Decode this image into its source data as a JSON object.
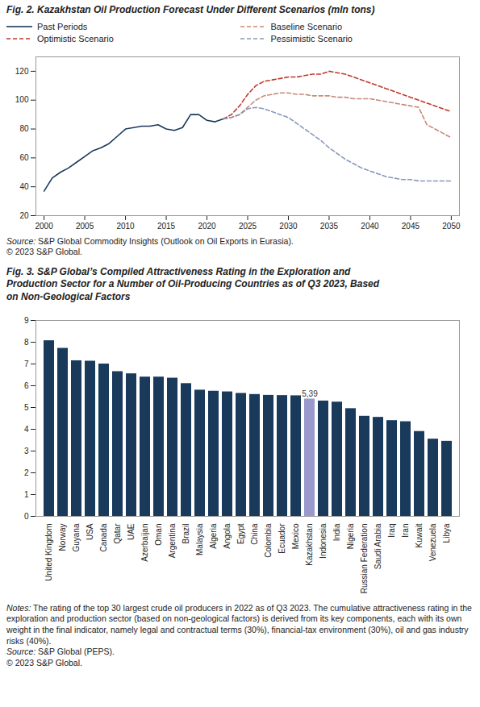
{
  "chart_data": [
    {
      "type": "line",
      "title": "Fig. 2. Kazakhstan Oil Production Forecast Under Different Scenarios (mln tons)",
      "x": [
        2000,
        2001,
        2002,
        2003,
        2004,
        2005,
        2006,
        2007,
        2008,
        2009,
        2010,
        2011,
        2012,
        2013,
        2014,
        2015,
        2016,
        2017,
        2018,
        2019,
        2020,
        2021,
        2022,
        2023,
        2024,
        2025,
        2026,
        2027,
        2028,
        2029,
        2030,
        2031,
        2032,
        2033,
        2034,
        2035,
        2036,
        2037,
        2038,
        2039,
        2040,
        2041,
        2042,
        2043,
        2044,
        2045,
        2046,
        2047,
        2048,
        2049,
        2050
      ],
      "series": [
        {
          "name": "Past Periods",
          "color": "#1a3a5c",
          "line_style": "solid",
          "values": [
            37,
            46,
            50,
            53,
            57,
            61,
            65,
            67,
            70,
            75,
            80,
            81,
            82,
            82,
            83,
            80,
            79,
            81,
            90,
            90,
            86,
            85,
            87,
            null,
            null,
            null,
            null,
            null,
            null,
            null,
            null,
            null,
            null,
            null,
            null,
            null,
            null,
            null,
            null,
            null,
            null,
            null,
            null,
            null,
            null,
            null,
            null,
            null,
            null,
            null,
            null
          ]
        },
        {
          "name": "Baseline Scenario",
          "color": "#c9897a",
          "line_style": "dashed",
          "values": [
            null,
            null,
            null,
            null,
            null,
            null,
            null,
            null,
            null,
            null,
            null,
            null,
            null,
            null,
            null,
            null,
            null,
            null,
            null,
            null,
            null,
            null,
            87,
            88,
            90,
            95,
            100,
            103,
            104,
            105,
            105,
            104,
            104,
            103,
            103,
            103,
            102,
            102,
            101,
            101,
            101,
            100,
            99,
            98,
            97,
            96,
            95,
            83,
            80,
            77,
            74
          ]
        },
        {
          "name": "Optimistic Scenario",
          "color": "#c0392b",
          "line_style": "dashed",
          "values": [
            null,
            null,
            null,
            null,
            null,
            null,
            null,
            null,
            null,
            null,
            null,
            null,
            null,
            null,
            null,
            null,
            null,
            null,
            null,
            null,
            null,
            null,
            87,
            90,
            96,
            104,
            110,
            113,
            114,
            115,
            116,
            116,
            117,
            118,
            118,
            120,
            119,
            118,
            116,
            114,
            112,
            110,
            108,
            106,
            104,
            102,
            100,
            98,
            96,
            94,
            92
          ]
        },
        {
          "name": "Pessimistic Scenario",
          "color": "#8899bb",
          "line_style": "dashed",
          "values": [
            null,
            null,
            null,
            null,
            null,
            null,
            null,
            null,
            null,
            null,
            null,
            null,
            null,
            null,
            null,
            null,
            null,
            null,
            null,
            null,
            null,
            null,
            87,
            88,
            90,
            94,
            95,
            94,
            92,
            90,
            88,
            84,
            80,
            76,
            72,
            67,
            63,
            59,
            56,
            53,
            51,
            49,
            47,
            46,
            45,
            45,
            44,
            44,
            44,
            44,
            44
          ]
        }
      ],
      "xlim": [
        1999,
        2051
      ],
      "xticks": [
        2000,
        2005,
        2010,
        2015,
        2020,
        2025,
        2030,
        2035,
        2040,
        2045,
        2050
      ],
      "ylim": [
        20,
        130
      ],
      "yticks": [
        20,
        40,
        60,
        80,
        100,
        120
      ],
      "grid": false,
      "legend": "top",
      "annotations": [
        "Source: S&P Global Commodity Insights (Outlook on Oil Exports in Eurasia).",
        "© 2023 S&P Global."
      ]
    },
    {
      "type": "bar",
      "title": "Fig. 3. S&P Global’s Compiled Attractiveness Rating in the Exploration and\nProduction Sector for a Number of Oil-Producing Countries as of Q3 2023, Based\non Non-Geological Factors",
      "categories": [
        "United Kingdom",
        "Norway",
        "Guyana",
        "USA",
        "Canada",
        "Qatar",
        "UAE",
        "Azerbaijan",
        "Oman",
        "Argentina",
        "Brazil",
        "Malaysia",
        "Algeria",
        "Angola",
        "Egypt",
        "China",
        "Colombia",
        "Ecuador",
        "Mexico",
        "Kazakhstan",
        "Indonesia",
        "India",
        "Nigeria",
        "Russian Federation",
        "Saudi Arabia",
        "Iraq",
        "Iran",
        "Kuwait",
        "Venezuela",
        "Libya"
      ],
      "values": [
        8.07,
        7.72,
        7.15,
        7.13,
        7.0,
        6.65,
        6.55,
        6.4,
        6.4,
        6.35,
        6.1,
        5.8,
        5.75,
        5.72,
        5.65,
        5.6,
        5.56,
        5.55,
        5.54,
        5.39,
        5.3,
        5.25,
        4.95,
        4.6,
        4.55,
        4.4,
        4.35,
        3.9,
        3.55,
        3.45
      ],
      "value_labels": [
        null,
        null,
        null,
        null,
        null,
        null,
        null,
        null,
        null,
        null,
        null,
        null,
        null,
        null,
        null,
        null,
        null,
        null,
        null,
        "5,39",
        null,
        null,
        null,
        null,
        null,
        null,
        null,
        null,
        null,
        null
      ],
      "colors": [
        "#1a3a5c",
        "#1a3a5c",
        "#1a3a5c",
        "#1a3a5c",
        "#1a3a5c",
        "#1a3a5c",
        "#1a3a5c",
        "#1a3a5c",
        "#1a3a5c",
        "#1a3a5c",
        "#1a3a5c",
        "#1a3a5c",
        "#1a3a5c",
        "#1a3a5c",
        "#1a3a5c",
        "#1a3a5c",
        "#1a3a5c",
        "#1a3a5c",
        "#1a3a5c",
        "#9999cc",
        "#1a3a5c",
        "#1a3a5c",
        "#1a3a5c",
        "#1a3a5c",
        "#1a3a5c",
        "#1a3a5c",
        "#1a3a5c",
        "#1a3a5c",
        "#1a3a5c",
        "#1a3a5c"
      ],
      "ylim": [
        0,
        9
      ],
      "yticks": [
        0,
        1,
        2,
        3,
        4,
        5,
        6,
        7,
        8,
        9
      ],
      "grid": false,
      "annotations": [
        "Notes: The rating of the top 30 largest crude oil producers in 2022 as of Q3 2023. The cumulative attractiveness rating in the exploration and production sector (based on non-geological factors) is derived from its key components, each with its own weight in the final indicator, namely legal and contractual terms (30%), financial-tax environment (30%), oil and gas industry risks (40%).",
        "Source: S&P Global (PEPS).",
        "© 2023 S&P Global."
      ]
    }
  ]
}
